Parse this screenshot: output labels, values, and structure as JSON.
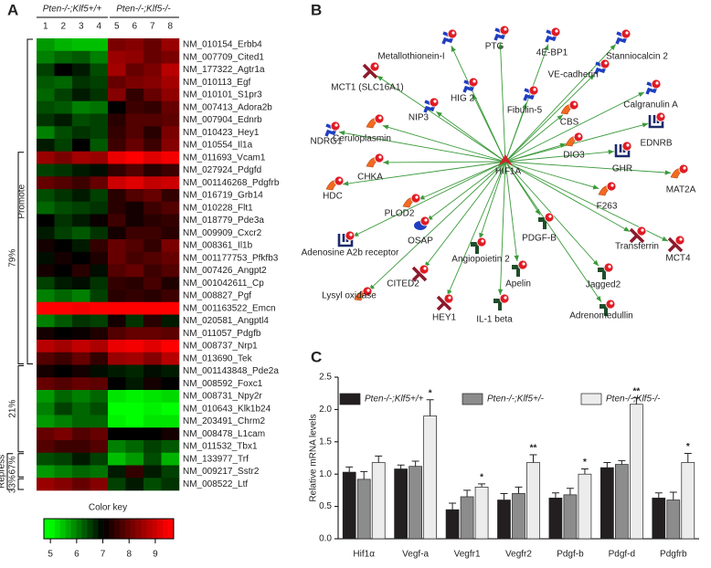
{
  "chart_data": [
    {
      "type": "heatmap",
      "panel": "A",
      "groups": [
        "Pten-/-;Klf5+/+",
        "Pten-/-;Klf5-/-"
      ],
      "columns": [
        "1",
        "2",
        "3",
        "4",
        "5",
        "6",
        "7",
        "8"
      ],
      "rows": [
        "NM_010154_Erbb4",
        "NM_007709_Cited1",
        "NM_177322_Agtr1a",
        "NM_010113_Egf",
        "NM_010101_S1pr3",
        "NM_007413_Adora2b",
        "NM_007904_Ednrb",
        "NM_010423_Hey1",
        "NM_010554_Il1a",
        "NM_011693_Vcam1",
        "NM_027924_Pdgfd",
        "NM_001146268_Pdgfrb",
        "NM_016719_Grb14",
        "NM_010228_Flt1",
        "NM_018779_Pde3a",
        "NM_009909_Cxcr2",
        "NM_008361_Il1b",
        "NM_001177753_Pfkfb3",
        "NM_007426_Angpt2",
        "NM_001042611_Cp",
        "NM_008827_Pgf",
        "NM_001163522_Emcn",
        "NM_020581_Angptl4",
        "NM_011057_Pdgfb",
        "NM_008737_Nrp1",
        "NM_013690_Tek",
        "NM_001143848_Pde2a",
        "NM_008592_Foxc1",
        "NM_008731_Npy2r",
        "NM_010643_Klk1b24",
        "NM_203491_Chrm2",
        "NM_008478_L1cam",
        "NM_011532_Tbx1",
        "NM_133977_Trf",
        "NM_009217_Sstr2",
        "NM_008522_Ltf"
      ],
      "values": [
        [
          5.8,
          5.6,
          5.5,
          5.5,
          8.2,
          8.3,
          8.0,
          8.5
        ],
        [
          6.0,
          6.2,
          6.3,
          6.0,
          8.5,
          8.4,
          8.0,
          8.2
        ],
        [
          6.5,
          7.0,
          6.8,
          6.4,
          8.6,
          8.0,
          8.2,
          8.8
        ],
        [
          6.3,
          6.2,
          6.6,
          6.5,
          8.0,
          8.2,
          8.3,
          8.6
        ],
        [
          6.2,
          6.5,
          6.8,
          6.6,
          8.3,
          7.5,
          8.0,
          8.4
        ],
        [
          6.4,
          6.3,
          6.0,
          6.1,
          7.0,
          7.6,
          7.5,
          8.0
        ],
        [
          6.6,
          6.8,
          6.4,
          6.5,
          7.4,
          7.8,
          7.8,
          7.9
        ],
        [
          6.0,
          6.4,
          6.6,
          6.5,
          7.5,
          7.8,
          7.4,
          8.2
        ],
        [
          6.8,
          6.5,
          7.0,
          6.3,
          7.6,
          8.0,
          7.6,
          8.3
        ],
        [
          8.5,
          8.2,
          8.6,
          8.5,
          9.3,
          9.6,
          9.2,
          9.4
        ],
        [
          6.5,
          6.6,
          6.8,
          6.9,
          7.5,
          7.8,
          7.4,
          7.6
        ],
        [
          8.0,
          7.8,
          7.6,
          8.0,
          9.0,
          9.2,
          8.9,
          9.0
        ],
        [
          6.4,
          6.6,
          6.8,
          6.5,
          7.4,
          7.8,
          8.0,
          7.5
        ],
        [
          6.2,
          6.4,
          6.5,
          6.6,
          7.4,
          7.2,
          7.6,
          7.8
        ],
        [
          7.0,
          6.6,
          6.8,
          7.1,
          7.6,
          7.2,
          7.4,
          7.5
        ],
        [
          6.8,
          6.5,
          6.3,
          6.6,
          7.2,
          7.6,
          7.6,
          7.4
        ],
        [
          7.2,
          7.0,
          6.8,
          7.5,
          8.0,
          7.8,
          7.5,
          8.2
        ],
        [
          6.9,
          7.2,
          7.0,
          7.3,
          8.0,
          7.7,
          7.8,
          8.0
        ],
        [
          7.2,
          7.0,
          7.4,
          6.9,
          7.8,
          8.0,
          7.6,
          7.8
        ],
        [
          6.5,
          6.8,
          6.9,
          6.6,
          7.5,
          7.4,
          7.7,
          7.3
        ],
        [
          6.0,
          6.2,
          6.0,
          6.5,
          7.4,
          7.5,
          7.4,
          7.6
        ],
        [
          9.6,
          9.7,
          9.4,
          9.5,
          9.8,
          9.8,
          9.8,
          9.8
        ],
        [
          6.0,
          6.3,
          6.6,
          6.5,
          7.2,
          6.6,
          7.4,
          6.8
        ],
        [
          7.2,
          7.0,
          7.1,
          7.3,
          7.8,
          8.0,
          8.0,
          7.9
        ],
        [
          8.8,
          8.6,
          8.9,
          8.7,
          9.3,
          9.4,
          9.2,
          9.5
        ],
        [
          7.8,
          7.6,
          8.0,
          7.5,
          8.5,
          8.6,
          8.3,
          8.8
        ],
        [
          7.2,
          7.0,
          7.2,
          6.9,
          6.8,
          6.7,
          6.9,
          6.8
        ],
        [
          8.0,
          7.8,
          8.0,
          7.9,
          7.0,
          6.8,
          7.2,
          7.0
        ],
        [
          5.8,
          6.2,
          6.0,
          6.2,
          5.2,
          5.1,
          5.2,
          5.3
        ],
        [
          6.0,
          6.5,
          6.2,
          6.4,
          5.0,
          5.0,
          5.1,
          5.0
        ],
        [
          5.8,
          6.0,
          6.2,
          6.2,
          5.1,
          5.0,
          5.2,
          5.2
        ],
        [
          8.0,
          8.2,
          7.8,
          8.0,
          7.0,
          7.0,
          7.0,
          7.2
        ],
        [
          7.8,
          7.6,
          7.6,
          7.8,
          6.0,
          6.2,
          6.5,
          6.3
        ],
        [
          6.4,
          6.5,
          6.8,
          6.5,
          5.5,
          5.8,
          6.4,
          5.6
        ],
        [
          5.8,
          6.0,
          6.2,
          6.1,
          6.8,
          7.5,
          6.8,
          6.5
        ],
        [
          8.5,
          8.3,
          8.0,
          8.3,
          6.5,
          6.8,
          6.4,
          6.6
        ]
      ],
      "side_labels": [
        "Promote",
        "79%",
        "21%",
        "Repress",
        "67%",
        "33%"
      ],
      "colorbar": {
        "title": "Color key",
        "lim": [
          4.75,
          9.7
        ],
        "ticks": [
          5,
          6,
          7,
          8,
          9
        ]
      }
    },
    {
      "type": "bar",
      "panel": "C",
      "categories": [
        "Hif1α",
        "Vegf-a",
        "Vegfr1",
        "Vegfr2",
        "Pdgf-b",
        "Pdgf-d",
        "Pdgfrb"
      ],
      "ylabel": "Relative mRNA levels",
      "ylim": [
        0,
        2.5
      ],
      "yticks": [
        {
          "value": 0,
          "label": "0.0"
        },
        0.5,
        {
          "value": 1,
          "label": "1.0"
        },
        1.5,
        {
          "value": 2,
          "label": "2.0"
        },
        2.5
      ],
      "series": [
        {
          "name": "Pten-/-;Klf5+/+",
          "color": "#231f20",
          "values": [
            1.03,
            1.08,
            0.45,
            0.6,
            0.63,
            1.1,
            0.63
          ],
          "errors": [
            0.08,
            0.06,
            0.1,
            0.1,
            0.08,
            0.08,
            0.08
          ]
        },
        {
          "name": "Pten-/-;Klf5+/-",
          "color": "#8c8c8c",
          "values": [
            0.92,
            1.12,
            0.65,
            0.7,
            0.68,
            1.15,
            0.6
          ],
          "errors": [
            0.12,
            0.08,
            0.1,
            0.1,
            0.1,
            0.06,
            0.12
          ]
        },
        {
          "name": "Pten-/-;Klf5-/-",
          "color": "#ececec",
          "values": [
            1.18,
            1.9,
            0.8,
            1.18,
            1.0,
            2.08,
            1.18
          ],
          "errors": [
            0.1,
            0.25,
            0.05,
            0.12,
            0.08,
            0.1,
            0.14
          ],
          "annotations": [
            null,
            "*",
            "*",
            "**",
            "*",
            "**",
            "*"
          ]
        }
      ]
    }
  ],
  "network": {
    "panel": "B",
    "center": "HIF1A",
    "nodes": [
      "Metallothionein-I",
      "PTG",
      "4E-BP1",
      "Stanniocalcin 2",
      "VE-cadherin",
      "MCT1 (SLC16A1)",
      "HIG 2",
      "Fibulin-5",
      "Calgranulin A",
      "NIP3",
      "CBS",
      "Ceruloplasmin",
      "NDRG1",
      "EDNRB",
      "DIO3",
      "CHKA",
      "GHR",
      "HDC",
      "MAT2A",
      "PLOD2",
      "F263",
      "OSAP",
      "PDGF-B",
      "Transferrin",
      "MCT4",
      "Adenosine A2b receptor",
      "Angiopoietin 2",
      "Jagged2",
      "CITED2",
      "Apelin",
      "Lysyl oxidase",
      "Adrenomedullin",
      "HEY1",
      "IL-1 beta"
    ]
  }
}
